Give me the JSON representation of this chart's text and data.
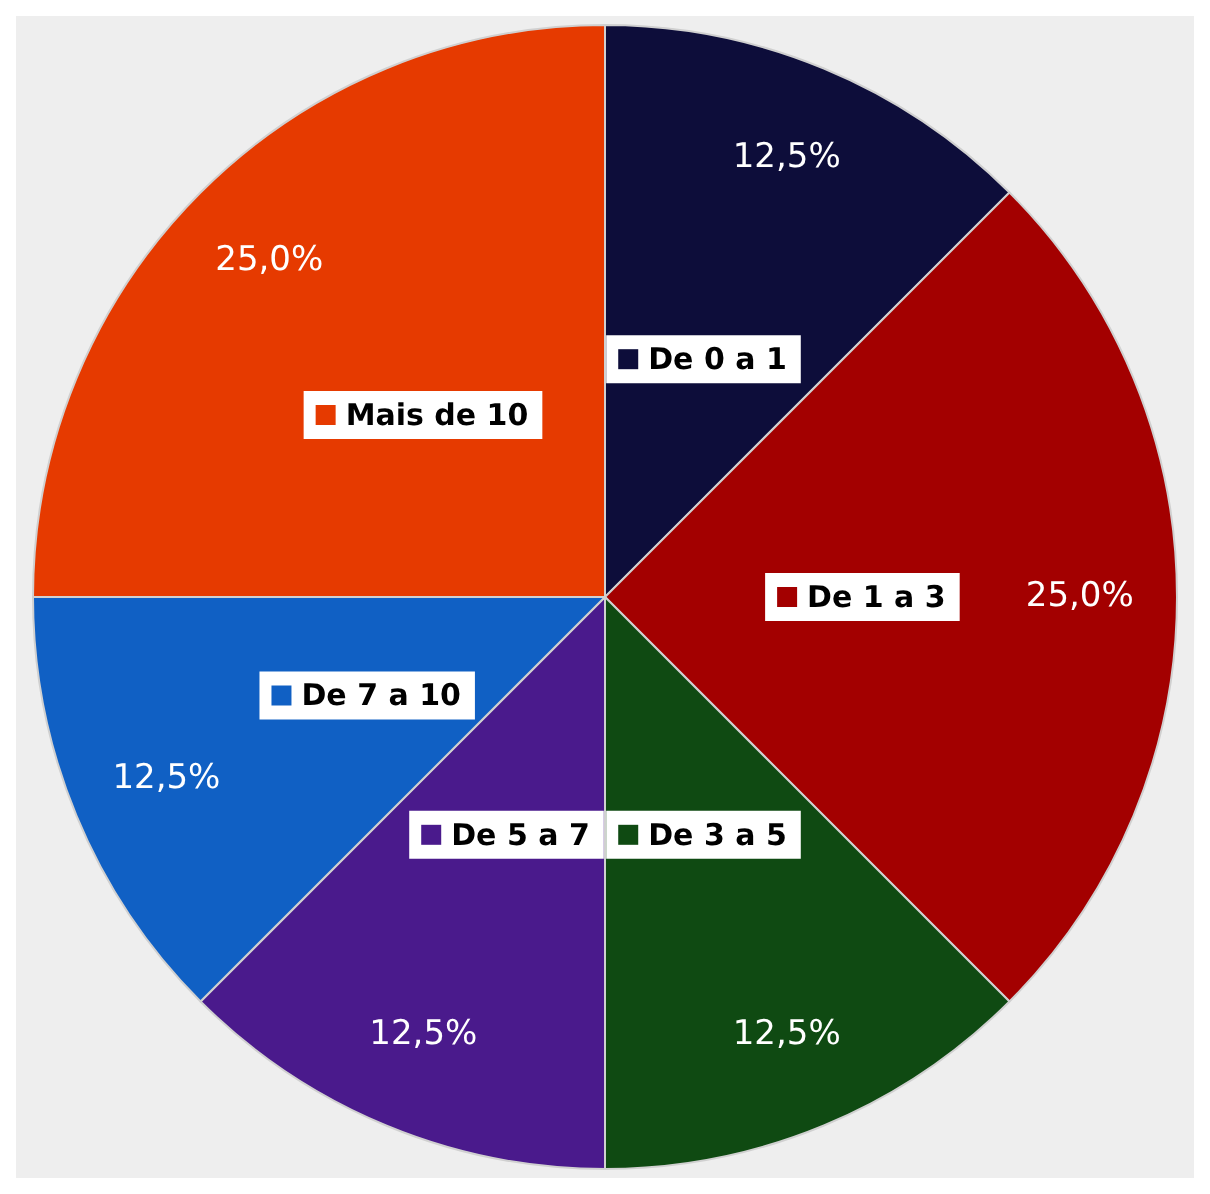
{
  "chart_data": {
    "type": "pie",
    "legend": "center",
    "categories": [
      "De 0 a 1",
      "De 1 a 3",
      "De 3 a 5",
      "De 5 a 7",
      "De 7 a 10",
      "Mais de 10"
    ],
    "values": [
      12.5,
      25,
      12.5,
      12.5,
      12.5,
      25
    ],
    "colors": [
      "#0d0d3a",
      "#a30000",
      "#0f4a12",
      "#4a1a8c",
      "#1060c4",
      "#e63a00"
    ],
    "value_labels": [
      "12,5%",
      "25,0%",
      "12,5%",
      "12,5%",
      "12,5%",
      "25,0%"
    ]
  }
}
